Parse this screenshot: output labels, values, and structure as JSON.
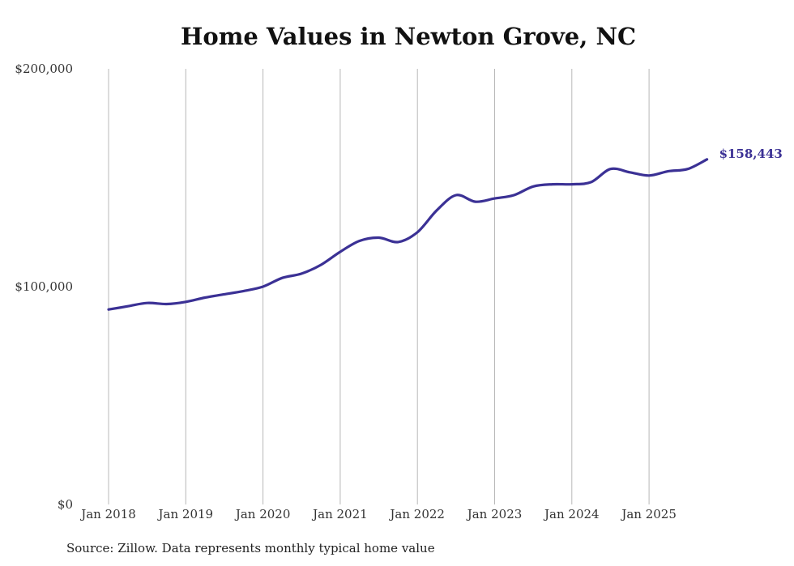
{
  "chart_data": {
    "type": "line",
    "title": "Home Values in Newton Grove, NC",
    "xlabel": "",
    "ylabel": "",
    "ylim": [
      0,
      200000
    ],
    "y_ticks": [
      {
        "value": 0,
        "label": "$0"
      },
      {
        "value": 100000,
        "label": "$100,000"
      },
      {
        "value": 200000,
        "label": "$200,000"
      }
    ],
    "x_ticks": [
      {
        "value": 2018.0,
        "label": "Jan 2018"
      },
      {
        "value": 2019.0,
        "label": "Jan 2019"
      },
      {
        "value": 2020.0,
        "label": "Jan 2020"
      },
      {
        "value": 2021.0,
        "label": "Jan 2021"
      },
      {
        "value": 2022.0,
        "label": "Jan 2022"
      },
      {
        "value": 2023.0,
        "label": "Jan 2023"
      },
      {
        "value": 2024.0,
        "label": "Jan 2024"
      },
      {
        "value": 2025.0,
        "label": "Jan 2025"
      }
    ],
    "xlim": [
      2018.0,
      2025.75
    ],
    "grid": "vertical",
    "line_color": "#3b3195",
    "end_label": "$158,443",
    "series": [
      {
        "name": "Typical home value",
        "x": [
          2018.0,
          2018.25,
          2018.5,
          2018.75,
          2019.0,
          2019.25,
          2019.5,
          2019.75,
          2020.0,
          2020.25,
          2020.5,
          2020.75,
          2021.0,
          2021.25,
          2021.5,
          2021.75,
          2022.0,
          2022.25,
          2022.5,
          2022.75,
          2023.0,
          2023.25,
          2023.5,
          2023.75,
          2024.0,
          2024.25,
          2024.5,
          2024.75,
          2025.0,
          2025.25,
          2025.5,
          2025.75
        ],
        "values": [
          89500,
          91000,
          92500,
          92000,
          93000,
          95000,
          96500,
          98000,
          100000,
          104000,
          106000,
          110000,
          116000,
          121000,
          122500,
          120500,
          125000,
          135000,
          142000,
          139000,
          140500,
          142000,
          146000,
          147000,
          147000,
          148000,
          154000,
          152500,
          151000,
          153000,
          154000,
          158443
        ]
      }
    ]
  },
  "source_note": "Source: Zillow. Data represents monthly typical home value"
}
